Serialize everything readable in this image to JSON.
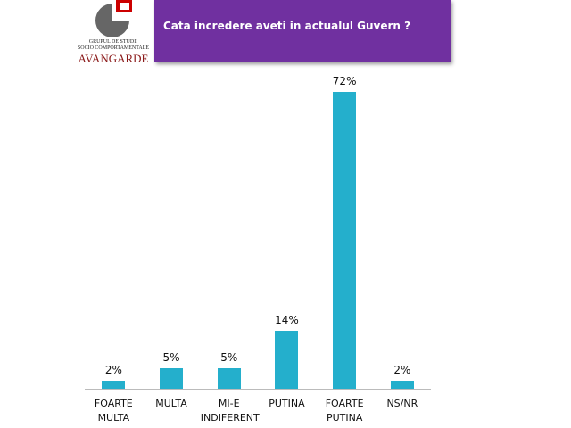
{
  "logo": {
    "line1": "GRUPUL DE STUDII",
    "line2": "SOCIO COMPORTAMENTALE",
    "name": "AVANGARDE"
  },
  "chart_data": {
    "type": "bar",
    "title": "Cata incredere aveti in actualul Guvern ?",
    "categories": [
      "FOARTE MULTA",
      "MULTA",
      "MI-E INDIFERENT",
      "PUTINA",
      "FOARTE PUTINA",
      "NS/NR"
    ],
    "values": [
      2,
      5,
      5,
      14,
      72,
      2
    ],
    "value_labels": [
      "2%",
      "5%",
      "5%",
      "14%",
      "72%",
      "2%"
    ],
    "color": "#24afcc"
  }
}
